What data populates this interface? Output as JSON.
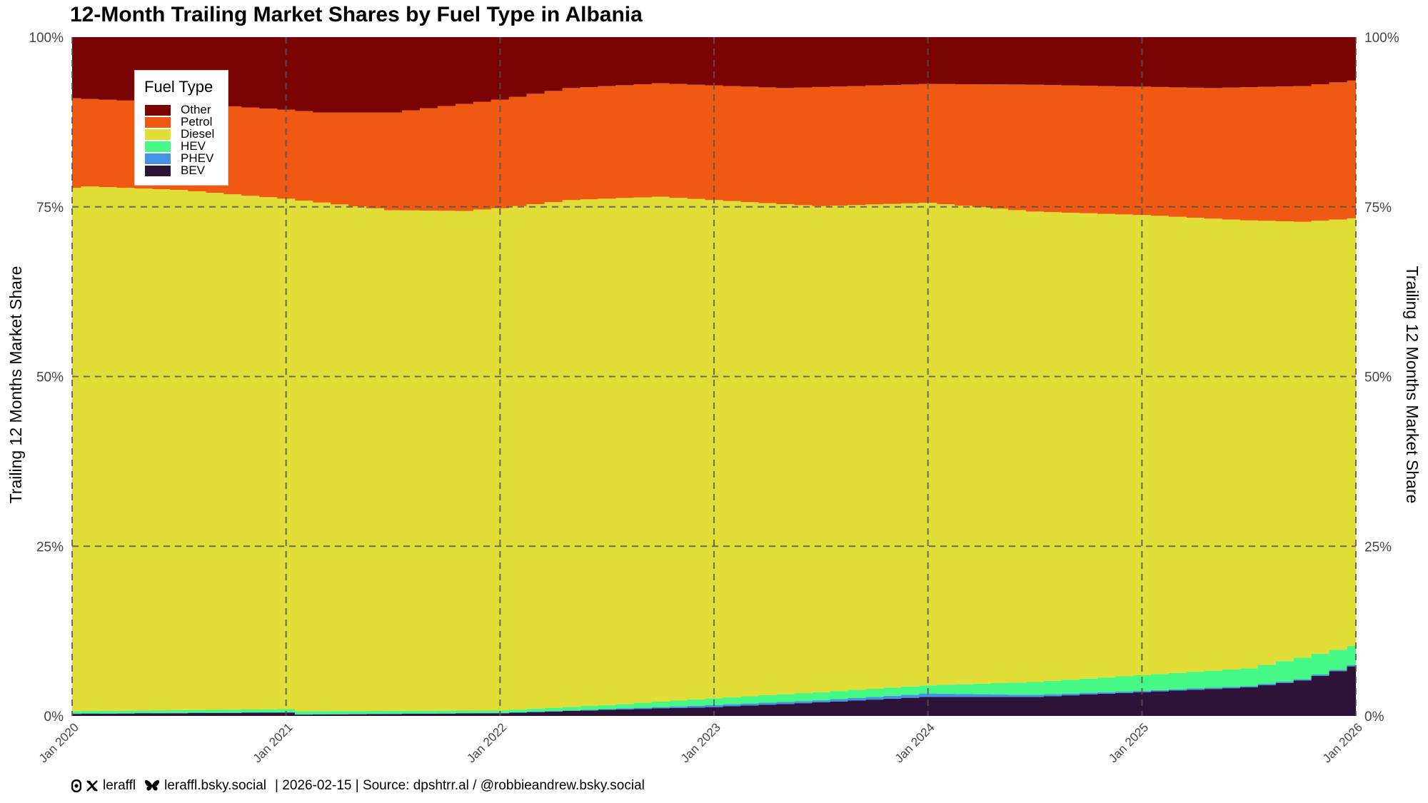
{
  "chart_data": {
    "type": "area",
    "title": "12-Month Trailing Market Shares by Fuel Type in Albania",
    "ylabel": "Trailing 12 Months Market Share",
    "ylabel_right": "Trailing 12 Months Market Share",
    "xlabel": "",
    "y_ticks": [
      "0%",
      "25%",
      "50%",
      "75%",
      "100%"
    ],
    "ylim": [
      0,
      100
    ],
    "x_start": "2020-01",
    "x_end": "2026-01",
    "x_ticks": [
      "Jan 2020",
      "Jan 2021",
      "Jan 2022",
      "Jan 2023",
      "Jan 2024",
      "Jan 2025",
      "Jan 2026"
    ],
    "grid": true,
    "stacked": true,
    "legend": {
      "title": "Fuel Type",
      "position": "top-left",
      "items": [
        "Other",
        "Petrol",
        "Diesel",
        "HEV",
        "PHEV",
        "BEV"
      ]
    },
    "colors": {
      "BEV": "#2e1339",
      "PHEV": "#4393e6",
      "HEV": "#46f884",
      "Diesel": "#e1dd37",
      "Petrol": "#ef5911",
      "Other": "#7a0403"
    },
    "stack_order": [
      "BEV",
      "PHEV",
      "HEV",
      "Diesel",
      "Petrol",
      "Other"
    ],
    "cumulative_keypoints": {
      "BEV": [
        [
          0,
          0.3
        ],
        [
          12,
          0.5
        ],
        [
          13,
          0.2
        ],
        [
          24,
          0.4
        ],
        [
          30,
          0.9
        ],
        [
          36,
          1.3
        ],
        [
          42,
          2.0
        ],
        [
          48,
          2.8
        ],
        [
          54,
          2.8
        ],
        [
          60,
          3.5
        ],
        [
          66,
          4.2
        ],
        [
          69,
          5.2
        ],
        [
          72,
          7.3
        ]
      ],
      "PHEV": [
        [
          0,
          0.35
        ],
        [
          12,
          0.55
        ],
        [
          13,
          0.25
        ],
        [
          24,
          0.45
        ],
        [
          30,
          1.0
        ],
        [
          36,
          1.6
        ],
        [
          42,
          2.3
        ],
        [
          48,
          3.3
        ],
        [
          54,
          3.1
        ],
        [
          60,
          3.7
        ],
        [
          66,
          4.4
        ],
        [
          69,
          5.4
        ],
        [
          72,
          7.5
        ]
      ],
      "HEV": [
        [
          0,
          0.7
        ],
        [
          12,
          1.0
        ],
        [
          13,
          0.7
        ],
        [
          24,
          0.8
        ],
        [
          30,
          1.6
        ],
        [
          36,
          2.6
        ],
        [
          42,
          3.5
        ],
        [
          48,
          4.5
        ],
        [
          54,
          5.0
        ],
        [
          60,
          6.0
        ],
        [
          66,
          7.0
        ],
        [
          69,
          8.6
        ],
        [
          72,
          10.3
        ]
      ],
      "Diesel": [
        [
          0,
          77.8
        ],
        [
          1,
          78.0
        ],
        [
          6,
          77.5
        ],
        [
          12,
          76.2
        ],
        [
          18,
          74.5
        ],
        [
          22,
          74.4
        ],
        [
          24,
          74.8
        ],
        [
          28,
          76.0
        ],
        [
          33,
          76.5
        ],
        [
          36,
          76.0
        ],
        [
          42,
          75.1
        ],
        [
          48,
          75.6
        ],
        [
          54,
          74.3
        ],
        [
          60,
          73.8
        ],
        [
          66,
          73.0
        ],
        [
          69,
          72.8
        ],
        [
          72,
          73.3
        ]
      ],
      "Petrol": [
        [
          0,
          91.0
        ],
        [
          6,
          90.3
        ],
        [
          12,
          89.3
        ],
        [
          14,
          88.9
        ],
        [
          18,
          88.9
        ],
        [
          24,
          90.8
        ],
        [
          28,
          92.5
        ],
        [
          33,
          93.2
        ],
        [
          36,
          92.9
        ],
        [
          40,
          92.5
        ],
        [
          48,
          93.1
        ],
        [
          54,
          93.0
        ],
        [
          60,
          92.7
        ],
        [
          64,
          92.5
        ],
        [
          69,
          92.8
        ],
        [
          72,
          93.6
        ]
      ],
      "Other": [
        [
          0,
          100
        ],
        [
          72,
          100
        ]
      ]
    }
  },
  "footer": {
    "handle_x": "leraffl",
    "handle_bsky": "leraffl.bsky.social",
    "credits": "| 2026-02-15 | Source: dpshtrr.al / @robbieandrew.bsky.social"
  }
}
